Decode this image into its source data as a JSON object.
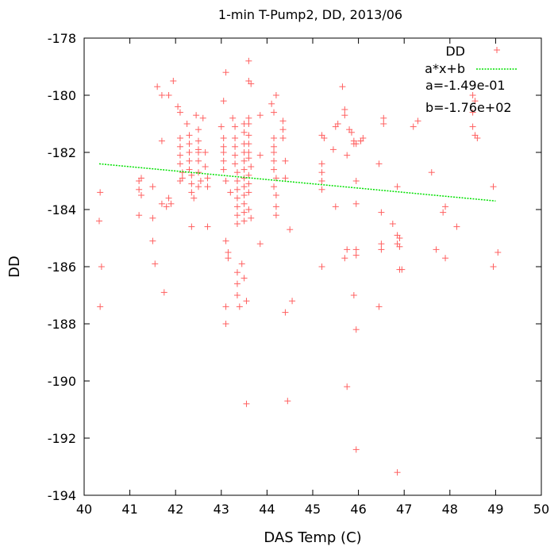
{
  "chart_data": {
    "type": "scatter",
    "title": "1-min T-Pump2, DD, 2013/06",
    "xlabel": "DAS Temp (C)",
    "ylabel": "DD",
    "xlim": [
      40,
      50
    ],
    "ylim": [
      -194,
      -178
    ],
    "x_ticks": [
      40,
      41,
      42,
      43,
      44,
      45,
      46,
      47,
      48,
      49,
      50
    ],
    "y_ticks": [
      -194,
      -192,
      -190,
      -188,
      -186,
      -184,
      -182,
      -180,
      -178
    ],
    "x_tick_labels": [
      "40",
      "41",
      "42",
      "43",
      "44",
      "45",
      "46",
      "47",
      "48",
      "49",
      "50"
    ],
    "y_tick_labels": [
      "-194",
      "-192",
      "-190",
      "-188",
      "-186",
      "-184",
      "-182",
      "-180",
      "-178"
    ],
    "grid": false,
    "legend_position": "top-right",
    "colors": {
      "points": "#ff6060",
      "fit": "#00e000"
    },
    "series": [
      {
        "name": "DD",
        "kind": "points",
        "points": [
          [
            40.35,
            -183.4
          ],
          [
            40.33,
            -184.4
          ],
          [
            40.38,
            -186.0
          ],
          [
            40.35,
            -187.4
          ],
          [
            41.2,
            -183.0
          ],
          [
            41.2,
            -183.3
          ],
          [
            41.25,
            -183.5
          ],
          [
            41.2,
            -184.2
          ],
          [
            41.25,
            -182.9
          ],
          [
            41.5,
            -183.2
          ],
          [
            41.5,
            -184.3
          ],
          [
            41.5,
            -185.1
          ],
          [
            41.55,
            -185.9
          ],
          [
            41.6,
            -179.7
          ],
          [
            41.7,
            -180.0
          ],
          [
            41.7,
            -181.6
          ],
          [
            41.7,
            -183.8
          ],
          [
            41.8,
            -183.9
          ],
          [
            41.75,
            -186.9
          ],
          [
            41.85,
            -183.6
          ],
          [
            41.85,
            -180.0
          ],
          [
            41.95,
            -179.5
          ],
          [
            41.9,
            -183.8
          ],
          [
            42.05,
            -180.4
          ],
          [
            42.1,
            -180.6
          ],
          [
            42.1,
            -181.5
          ],
          [
            42.1,
            -181.8
          ],
          [
            42.1,
            -182.1
          ],
          [
            42.1,
            -182.4
          ],
          [
            42.15,
            -182.7
          ],
          [
            42.1,
            -183.0
          ],
          [
            42.15,
            -182.9
          ],
          [
            42.25,
            -181.0
          ],
          [
            42.3,
            -181.4
          ],
          [
            42.3,
            -181.7
          ],
          [
            42.3,
            -182.0
          ],
          [
            42.3,
            -182.3
          ],
          [
            42.3,
            -182.6
          ],
          [
            42.35,
            -182.8
          ],
          [
            42.35,
            -183.1
          ],
          [
            42.35,
            -183.4
          ],
          [
            42.4,
            -183.6
          ],
          [
            42.35,
            -184.6
          ],
          [
            42.45,
            -180.7
          ],
          [
            42.5,
            -181.2
          ],
          [
            42.5,
            -181.6
          ],
          [
            42.5,
            -181.9
          ],
          [
            42.5,
            -182.0
          ],
          [
            42.5,
            -182.3
          ],
          [
            42.5,
            -182.7
          ],
          [
            42.55,
            -183.0
          ],
          [
            42.5,
            -183.2
          ],
          [
            42.6,
            -180.8
          ],
          [
            42.65,
            -182.5
          ],
          [
            42.7,
            -182.9
          ],
          [
            42.7,
            -183.2
          ],
          [
            42.7,
            -184.6
          ],
          [
            42.65,
            -182.0
          ],
          [
            43.0,
            -181.1
          ],
          [
            43.05,
            -181.5
          ],
          [
            43.05,
            -181.8
          ],
          [
            43.05,
            -182.0
          ],
          [
            43.05,
            -182.3
          ],
          [
            43.05,
            -182.6
          ],
          [
            43.1,
            -183.0
          ],
          [
            43.05,
            -180.2
          ],
          [
            43.1,
            -179.2
          ],
          [
            43.1,
            -185.1
          ],
          [
            43.15,
            -185.5
          ],
          [
            43.15,
            -185.7
          ],
          [
            43.1,
            -187.4
          ],
          [
            43.1,
            -188.0
          ],
          [
            43.2,
            -183.4
          ],
          [
            43.25,
            -180.8
          ],
          [
            43.3,
            -181.1
          ],
          [
            43.3,
            -181.5
          ],
          [
            43.3,
            -181.8
          ],
          [
            43.3,
            -182.1
          ],
          [
            43.3,
            -182.4
          ],
          [
            43.35,
            -182.7
          ],
          [
            43.35,
            -183.0
          ],
          [
            43.35,
            -183.3
          ],
          [
            43.35,
            -183.6
          ],
          [
            43.35,
            -183.9
          ],
          [
            43.35,
            -184.2
          ],
          [
            43.35,
            -184.5
          ],
          [
            43.35,
            -186.2
          ],
          [
            43.35,
            -186.6
          ],
          [
            43.35,
            -187.0
          ],
          [
            43.4,
            -187.4
          ],
          [
            43.5,
            -181.0
          ],
          [
            43.5,
            -181.3
          ],
          [
            43.5,
            -181.7
          ],
          [
            43.5,
            -182.0
          ],
          [
            43.5,
            -182.3
          ],
          [
            43.5,
            -182.6
          ],
          [
            43.5,
            -182.9
          ],
          [
            43.5,
            -183.2
          ],
          [
            43.5,
            -183.5
          ],
          [
            43.5,
            -183.8
          ],
          [
            43.5,
            -184.1
          ],
          [
            43.5,
            -184.4
          ],
          [
            43.45,
            -185.9
          ],
          [
            43.5,
            -186.4
          ],
          [
            43.55,
            -187.2
          ],
          [
            43.6,
            -178.8
          ],
          [
            43.6,
            -179.5
          ],
          [
            43.65,
            -179.6
          ],
          [
            43.6,
            -180.8
          ],
          [
            43.6,
            -181.0
          ],
          [
            43.6,
            -181.4
          ],
          [
            43.6,
            -181.7
          ],
          [
            43.6,
            -182.0
          ],
          [
            43.6,
            -182.2
          ],
          [
            43.65,
            -182.5
          ],
          [
            43.6,
            -182.8
          ],
          [
            43.6,
            -183.1
          ],
          [
            43.6,
            -183.4
          ],
          [
            43.6,
            -184.0
          ],
          [
            43.65,
            -184.3
          ],
          [
            43.55,
            -190.8
          ],
          [
            43.85,
            -182.1
          ],
          [
            43.85,
            -180.7
          ],
          [
            43.85,
            -185.2
          ],
          [
            44.1,
            -180.3
          ],
          [
            44.15,
            -180.6
          ],
          [
            44.15,
            -181.5
          ],
          [
            44.15,
            -181.8
          ],
          [
            44.15,
            -182.0
          ],
          [
            44.15,
            -182.3
          ],
          [
            44.15,
            -182.6
          ],
          [
            44.2,
            -182.9
          ],
          [
            44.15,
            -183.2
          ],
          [
            44.2,
            -183.5
          ],
          [
            44.2,
            -180.0
          ],
          [
            44.2,
            -183.9
          ],
          [
            44.2,
            -184.2
          ],
          [
            44.35,
            -180.9
          ],
          [
            44.35,
            -181.2
          ],
          [
            44.35,
            -181.5
          ],
          [
            44.4,
            -182.3
          ],
          [
            44.4,
            -182.9
          ],
          [
            44.4,
            -187.6
          ],
          [
            44.45,
            -190.7
          ],
          [
            44.5,
            -184.7
          ],
          [
            44.55,
            -187.2
          ],
          [
            45.2,
            -181.4
          ],
          [
            45.2,
            -182.4
          ],
          [
            45.2,
            -182.7
          ],
          [
            45.2,
            -183.0
          ],
          [
            45.2,
            -183.3
          ],
          [
            45.2,
            -186.0
          ],
          [
            45.25,
            -181.5
          ],
          [
            45.45,
            -181.9
          ],
          [
            45.5,
            -181.1
          ],
          [
            45.55,
            -181.0
          ],
          [
            45.5,
            -183.9
          ],
          [
            45.65,
            -179.7
          ],
          [
            45.7,
            -180.5
          ],
          [
            45.7,
            -180.7
          ],
          [
            45.75,
            -182.1
          ],
          [
            45.75,
            -185.4
          ],
          [
            45.7,
            -185.7
          ],
          [
            45.75,
            -190.2
          ],
          [
            45.8,
            -181.2
          ],
          [
            45.85,
            -181.3
          ],
          [
            45.9,
            -181.6
          ],
          [
            45.9,
            -181.7
          ],
          [
            45.95,
            -181.7
          ],
          [
            45.95,
            -183.0
          ],
          [
            45.95,
            -183.8
          ],
          [
            45.95,
            -185.4
          ],
          [
            45.95,
            -185.6
          ],
          [
            45.9,
            -187.0
          ],
          [
            45.95,
            -188.2
          ],
          [
            45.95,
            -192.4
          ],
          [
            46.05,
            -181.6
          ],
          [
            46.1,
            -181.5
          ],
          [
            46.05,
            -181.6
          ],
          [
            46.45,
            -182.4
          ],
          [
            46.5,
            -184.1
          ],
          [
            46.5,
            -185.2
          ],
          [
            46.5,
            -185.4
          ],
          [
            46.45,
            -187.4
          ],
          [
            46.55,
            -181.0
          ],
          [
            46.55,
            -180.8
          ],
          [
            46.75,
            -184.5
          ],
          [
            46.85,
            -184.9
          ],
          [
            46.85,
            -185.2
          ],
          [
            46.9,
            -185.0
          ],
          [
            46.9,
            -185.3
          ],
          [
            46.9,
            -186.1
          ],
          [
            46.95,
            -186.1
          ],
          [
            46.85,
            -183.2
          ],
          [
            46.85,
            -193.2
          ],
          [
            47.2,
            -181.1
          ],
          [
            47.3,
            -180.9
          ],
          [
            47.6,
            -182.7
          ],
          [
            47.7,
            -185.4
          ],
          [
            47.85,
            -184.1
          ],
          [
            47.9,
            -183.9
          ],
          [
            47.9,
            -185.7
          ],
          [
            48.15,
            -184.6
          ],
          [
            48.5,
            -180.0
          ],
          [
            48.55,
            -180.2
          ],
          [
            48.5,
            -180.6
          ],
          [
            48.5,
            -181.1
          ],
          [
            48.55,
            -181.4
          ],
          [
            48.6,
            -181.5
          ],
          [
            48.95,
            -183.2
          ],
          [
            48.95,
            -186.0
          ],
          [
            49.05,
            -185.5
          ]
        ]
      },
      {
        "name": "a*x+b",
        "kind": "line",
        "x": [
          40.33,
          49.0
        ],
        "y": [
          -182.4,
          -183.7
        ]
      }
    ],
    "annotations": [
      "a=-1.49e-01",
      "b=-1.76e+02"
    ]
  }
}
